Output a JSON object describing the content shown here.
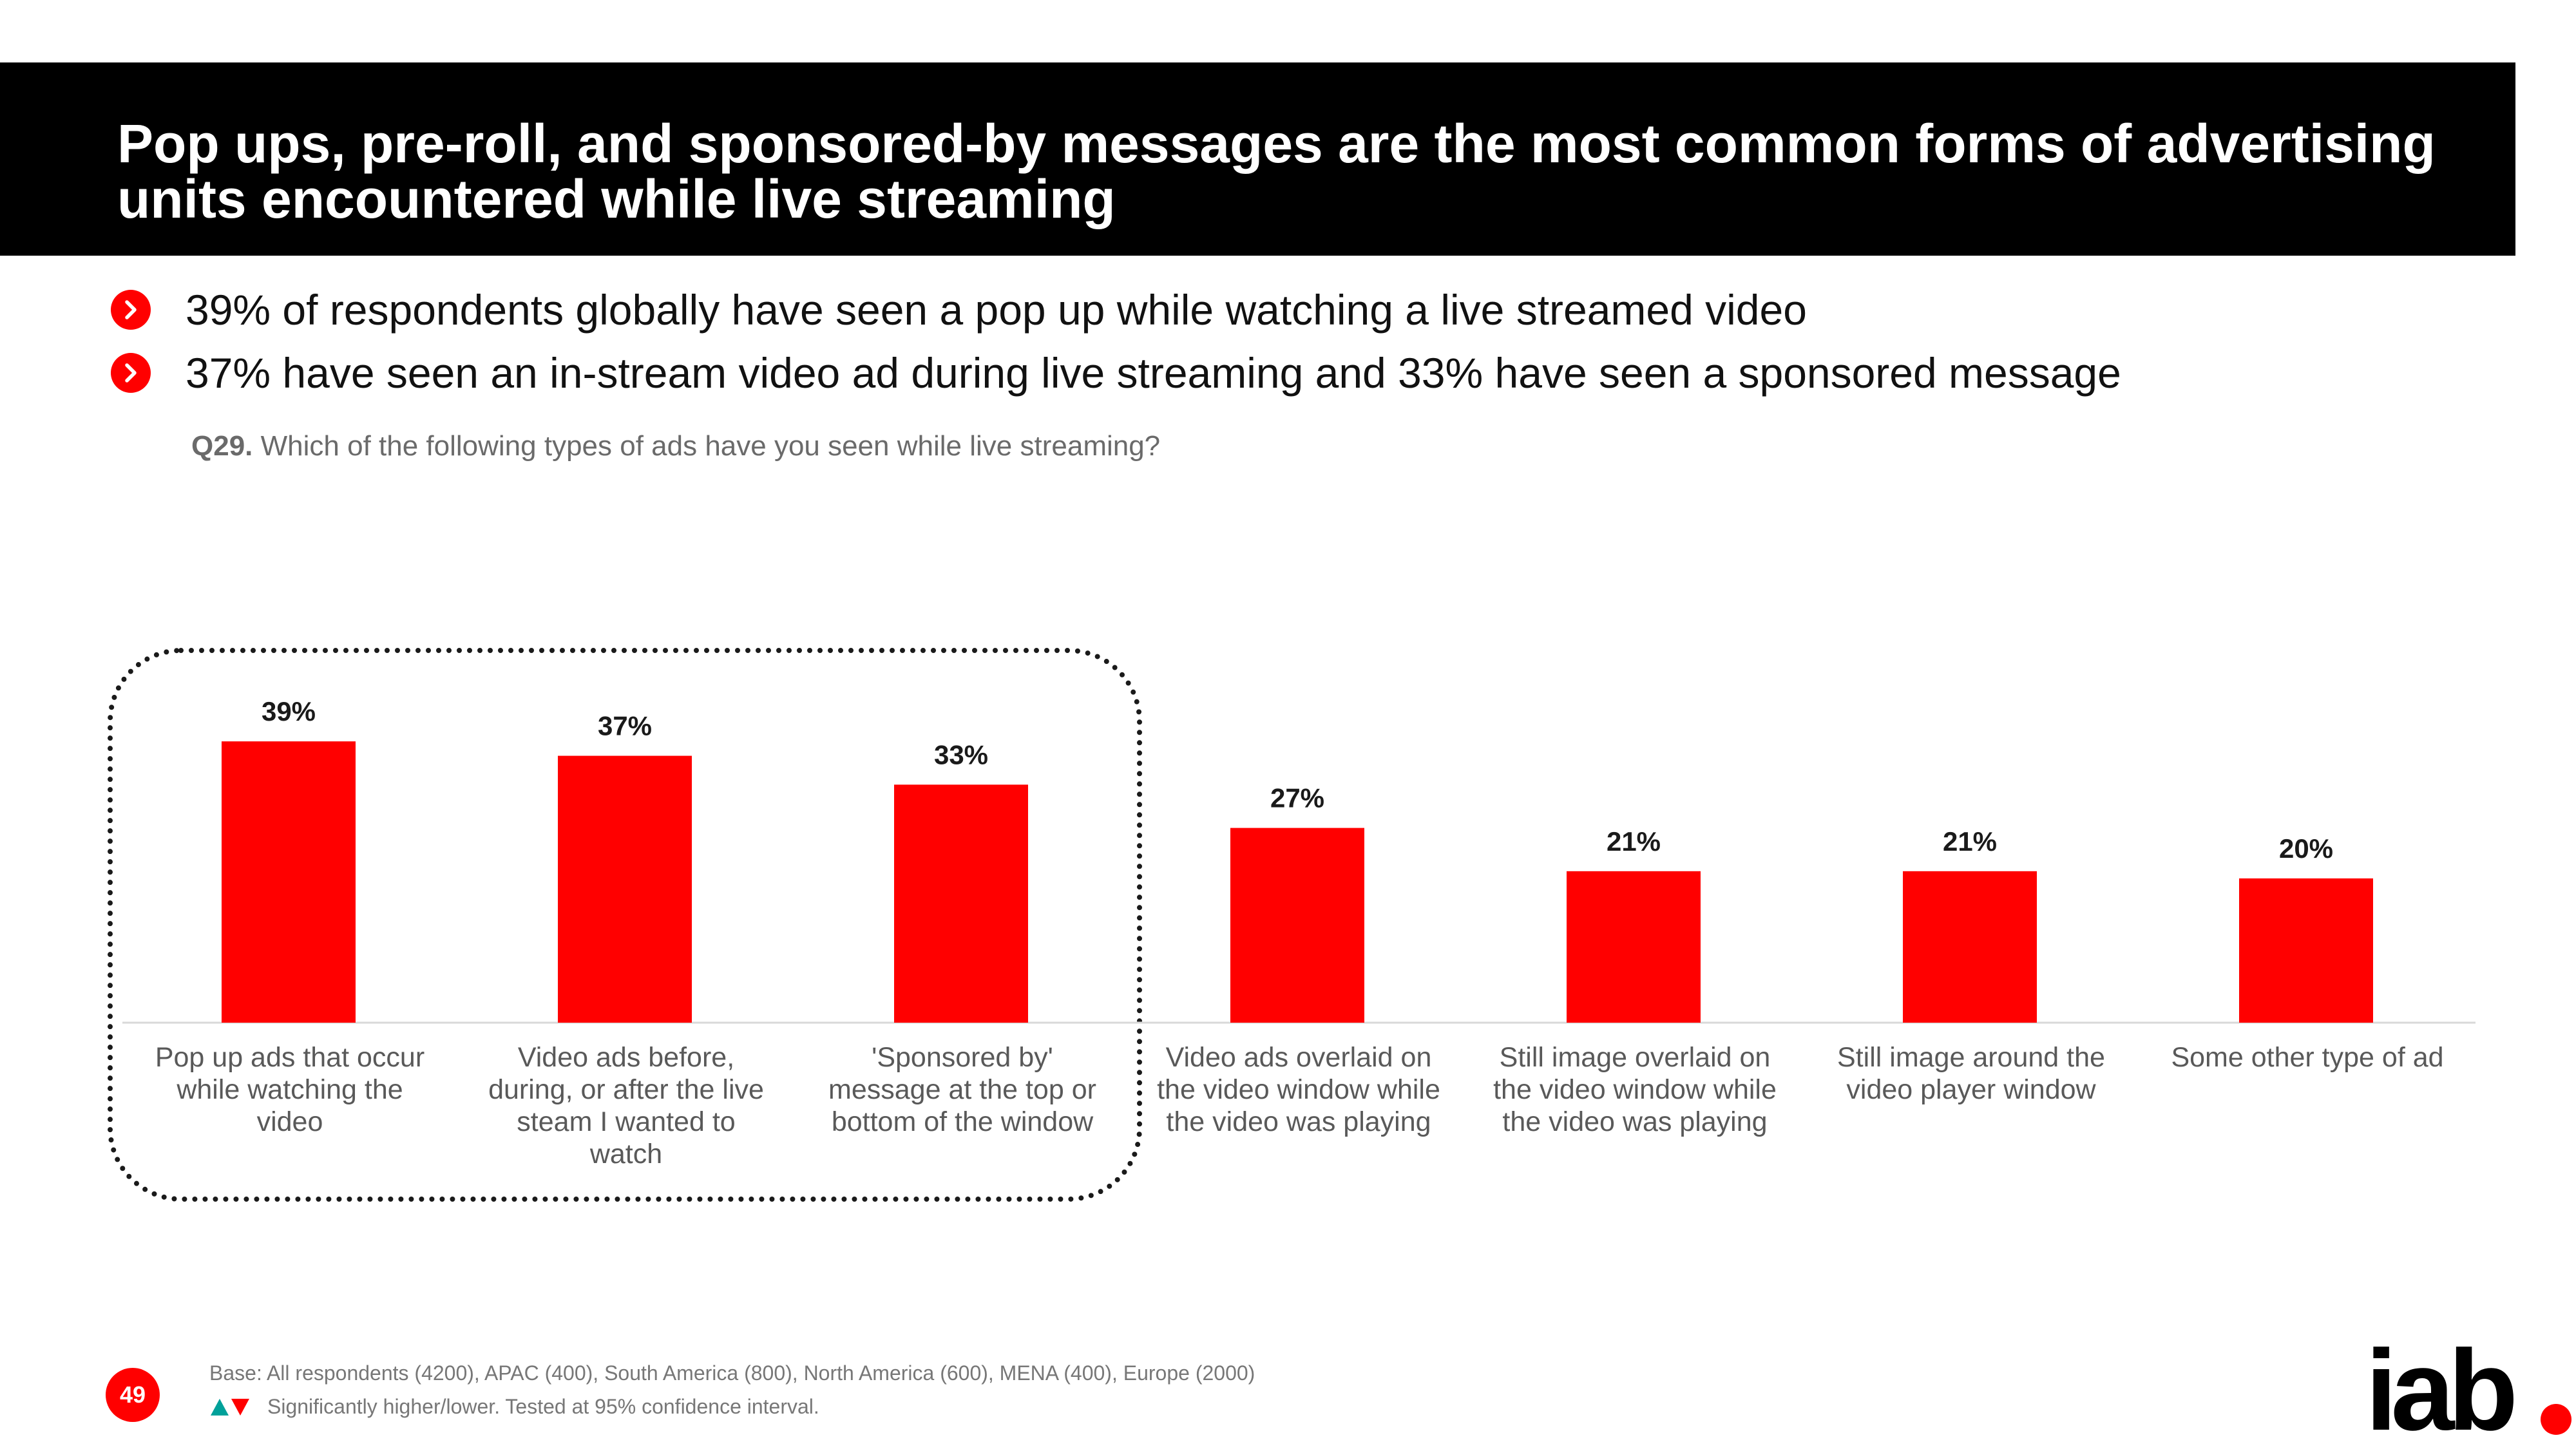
{
  "slide": {
    "title": "Pop ups, pre-roll, and sponsored-by messages are the most common forms of advertising units encountered while live streaming",
    "bullets": [
      {
        "text": "39% of respondents globally have seen a pop up while watching a live streamed video",
        "icon": "chevron-right-icon"
      },
      {
        "text": "37% have seen an in-stream video ad during live streaming and 33% have seen a sponsored message",
        "icon": "chevron-right-icon"
      }
    ],
    "question": {
      "number": "Q29.",
      "text": "Which of the following types of ads have you seen while live streaming?"
    }
  },
  "chart_data": {
    "type": "bar",
    "categories": [
      "Pop up ads that occur while watching the video",
      "Video ads before, during, or after the live steam I wanted to watch",
      "'Sponsored by' message at the top or bottom of the window",
      "Video ads overlaid on the video window while the video was playing",
      "Still image overlaid on the video window while the video was playing",
      "Still image around the video player window",
      "Some other type of ad"
    ],
    "category_lines": [
      [
        "Pop up ads that occur",
        "while watching the",
        "video"
      ],
      [
        "Video ads before,",
        "during, or after the live",
        "steam I wanted to",
        "watch"
      ],
      [
        "'Sponsored by'",
        "message at the top or",
        "bottom of the window"
      ],
      [
        "Video ads overlaid on",
        "the video window while",
        "the video was playing"
      ],
      [
        "Still image overlaid on",
        "the video window while",
        "the video was playing"
      ],
      [
        "Still image around the",
        "video player window"
      ],
      [
        "Some other type of ad"
      ]
    ],
    "values": [
      39,
      37,
      33,
      27,
      21,
      21,
      20
    ],
    "data_labels": [
      "39%",
      "37%",
      "33%",
      "27%",
      "21%",
      "21%",
      "20%"
    ],
    "unit": "%",
    "ylim": [
      0,
      40
    ],
    "grid": false,
    "legend": "none",
    "highlight": {
      "categories": [
        0,
        1,
        2
      ],
      "style": "dotted rounded box"
    },
    "colors": {
      "bar": "#ff0000",
      "label": "#1a1a1a",
      "axis": "#d9d9d9",
      "category_text": "#595959"
    }
  },
  "footer": {
    "base": "Base: All respondents (4200), APAC (400), South America (800), North America (600), MENA (400), Europe (2000)",
    "significance": "Significantly higher/lower. Tested at 95% confidence interval.",
    "significance_icons": [
      "triangle-up-icon",
      "triangle-down-icon"
    ],
    "significance_colors": {
      "higher": "#00a19a",
      "lower": "#ff0000"
    },
    "page_number": "49"
  },
  "branding": {
    "logo_text": "iab.",
    "logo_color": "#000000",
    "accent": "#ff0000"
  }
}
